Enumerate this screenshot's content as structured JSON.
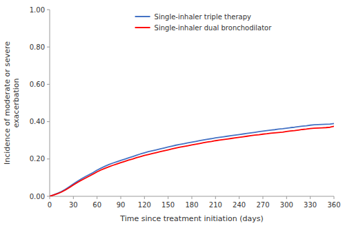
{
  "chart_data": {
    "type": "line",
    "xlabel": "Time since treatment initiation (days)",
    "ylabel": "Incidence of moderate or severe\nexacerbation",
    "x": [
      0,
      5,
      10,
      15,
      20,
      25,
      30,
      35,
      40,
      45,
      50,
      55,
      60,
      65,
      70,
      75,
      80,
      85,
      90,
      95,
      100,
      105,
      110,
      115,
      120,
      125,
      130,
      135,
      140,
      145,
      150,
      155,
      160,
      165,
      170,
      175,
      180,
      185,
      190,
      195,
      200,
      205,
      210,
      215,
      220,
      225,
      230,
      235,
      240,
      245,
      250,
      255,
      260,
      265,
      270,
      275,
      280,
      285,
      290,
      295,
      300,
      305,
      310,
      315,
      320,
      325,
      330,
      335,
      340,
      345,
      350,
      355,
      360
    ],
    "series": [
      {
        "name": "Single-inhaler triple therapy",
        "color": "#4472C4",
        "values": [
          0.0,
          0.008,
          0.016,
          0.026,
          0.038,
          0.052,
          0.066,
          0.08,
          0.093,
          0.105,
          0.116,
          0.127,
          0.14,
          0.151,
          0.161,
          0.17,
          0.178,
          0.185,
          0.192,
          0.199,
          0.206,
          0.213,
          0.22,
          0.227,
          0.233,
          0.239,
          0.244,
          0.249,
          0.254,
          0.259,
          0.264,
          0.269,
          0.274,
          0.278,
          0.282,
          0.286,
          0.29,
          0.294,
          0.298,
          0.302,
          0.306,
          0.309,
          0.313,
          0.316,
          0.319,
          0.322,
          0.325,
          0.328,
          0.331,
          0.334,
          0.337,
          0.34,
          0.343,
          0.346,
          0.349,
          0.352,
          0.355,
          0.357,
          0.36,
          0.362,
          0.365,
          0.368,
          0.37,
          0.373,
          0.376,
          0.378,
          0.381,
          0.383,
          0.384,
          0.385,
          0.386,
          0.387,
          0.39
        ]
      },
      {
        "name": "Single-inhaler dual bronchodilator",
        "color": "#FF0000",
        "values": [
          0.0,
          0.007,
          0.014,
          0.023,
          0.034,
          0.047,
          0.061,
          0.074,
          0.086,
          0.097,
          0.108,
          0.119,
          0.131,
          0.141,
          0.15,
          0.158,
          0.166,
          0.173,
          0.18,
          0.187,
          0.194,
          0.2,
          0.207,
          0.213,
          0.219,
          0.224,
          0.229,
          0.234,
          0.239,
          0.244,
          0.249,
          0.254,
          0.259,
          0.263,
          0.267,
          0.271,
          0.275,
          0.279,
          0.283,
          0.287,
          0.291,
          0.294,
          0.298,
          0.301,
          0.304,
          0.307,
          0.31,
          0.313,
          0.316,
          0.319,
          0.322,
          0.325,
          0.328,
          0.33,
          0.333,
          0.335,
          0.338,
          0.34,
          0.342,
          0.344,
          0.347,
          0.35,
          0.352,
          0.355,
          0.358,
          0.36,
          0.363,
          0.365,
          0.366,
          0.367,
          0.368,
          0.37,
          0.375
        ]
      }
    ],
    "xlim": [
      0,
      360
    ],
    "xticks": [
      0,
      30,
      60,
      90,
      120,
      150,
      180,
      210,
      240,
      270,
      300,
      330,
      360
    ],
    "ylim": [
      0.0,
      1.0
    ],
    "yticks": [
      {
        "value": 0.0,
        "label": "0.00"
      },
      {
        "value": 0.2,
        "label": "0.20"
      },
      {
        "value": 0.4,
        "label": "0.40"
      },
      {
        "value": 0.6,
        "label": "0.60"
      },
      {
        "value": 0.8,
        "label": "0.80"
      },
      {
        "value": 1.0,
        "label": "1.00"
      }
    ],
    "grid": false,
    "legend": "top"
  }
}
